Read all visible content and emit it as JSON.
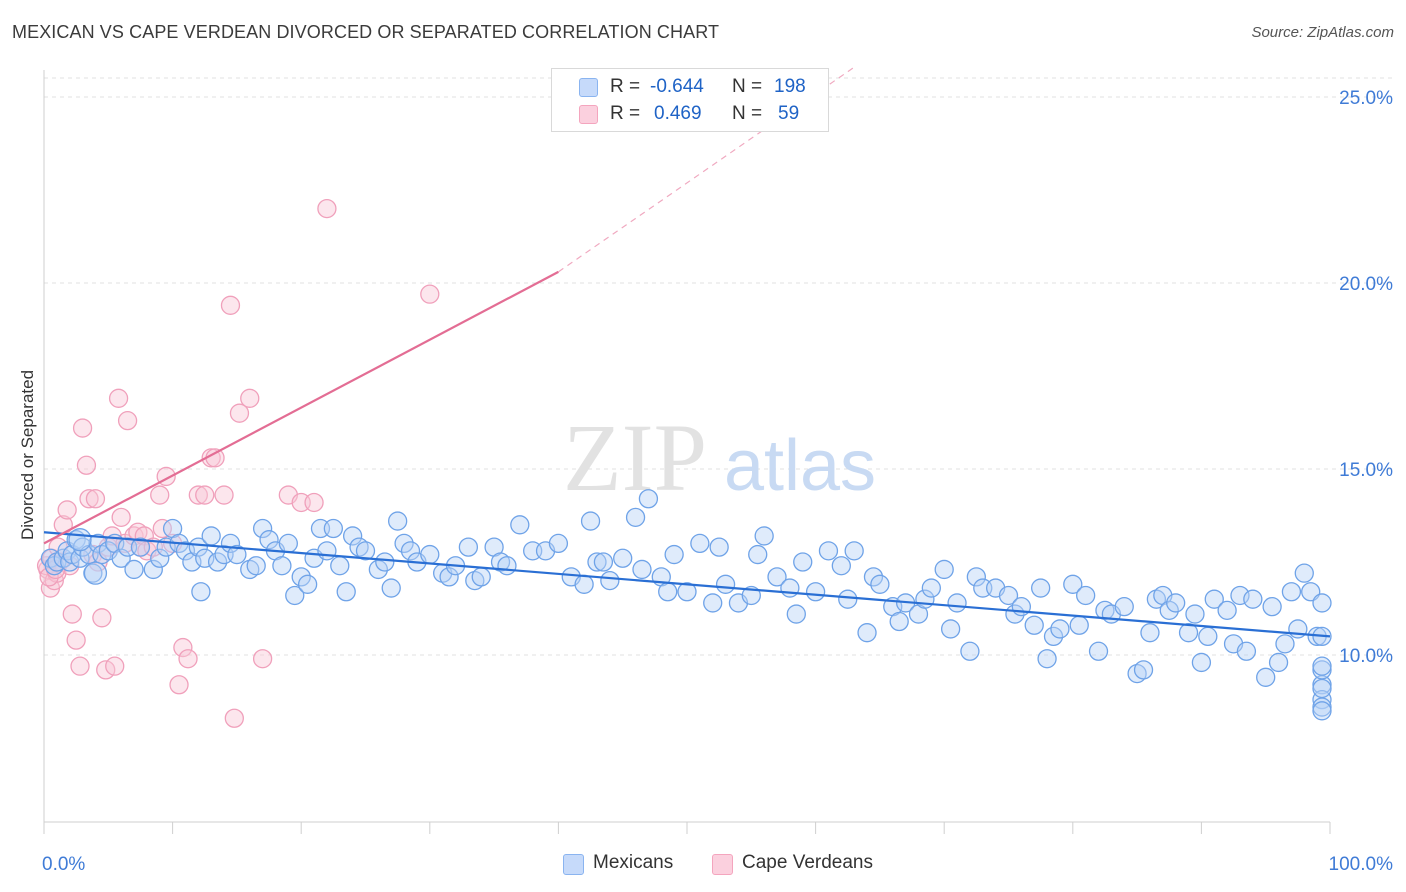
{
  "title": "MEXICAN VS CAPE VERDEAN DIVORCED OR SEPARATED CORRELATION CHART",
  "source": "Source: ZipAtlas.com",
  "watermark": {
    "zip": "ZIP",
    "atlas": "atlas"
  },
  "legend": {
    "series1": {
      "r_label": "R =",
      "r_value": "-0.644",
      "n_label": "N =",
      "n_value": "198",
      "color": "#8ab4f0"
    },
    "series2": {
      "r_label": "R =",
      "r_value": "0.469",
      "n_label": "N =",
      "n_value": "59",
      "color": "#f4a5be"
    }
  },
  "bottom_legend": {
    "mexicans": "Mexicans",
    "cape_verdeans": "Cape Verdeans"
  },
  "chart_data": {
    "type": "scatter",
    "title": "MEXICAN VS CAPE VERDEAN DIVORCED OR SEPARATED CORRELATION CHART",
    "xlabel": "",
    "ylabel": "Divorced or Separated",
    "xlim": [
      0,
      100
    ],
    "ylim": [
      5,
      26
    ],
    "x_ticks": [
      0,
      10,
      20,
      30,
      40,
      50,
      60,
      70,
      80,
      90,
      100
    ],
    "x_tick_labels": {
      "left": "0.0%",
      "right": "100.0%"
    },
    "y_ticks": [
      10,
      15,
      20,
      25
    ],
    "y_tick_labels": [
      "10.0%",
      "15.0%",
      "20.0%",
      "25.0%"
    ],
    "grid": "horizontal dashed",
    "series": [
      {
        "name": "Mexicans",
        "color": "#6fa3e8",
        "trend": {
          "x": [
            0,
            100
          ],
          "y": [
            13.3,
            10.5
          ],
          "color": "#2a6fd4"
        },
        "points": [
          [
            0.5,
            12.6
          ],
          [
            0.8,
            12.4
          ],
          [
            1,
            12.5
          ],
          [
            1.5,
            12.6
          ],
          [
            1.8,
            12.8
          ],
          [
            2,
            12.5
          ],
          [
            2.2,
            12.7
          ],
          [
            2.5,
            13.1
          ],
          [
            2.8,
            12.6
          ],
          [
            3,
            12.9
          ],
          [
            3.5,
            12.7
          ],
          [
            3.8,
            12.2
          ],
          [
            4.2,
            13
          ],
          [
            4.5,
            12.7
          ],
          [
            5,
            12.8
          ],
          [
            5.5,
            13
          ],
          [
            6,
            12.6
          ],
          [
            6.5,
            12.9
          ],
          [
            7,
            12.3
          ],
          [
            7.5,
            12.9
          ],
          [
            8.5,
            12.3
          ],
          [
            9,
            12.6
          ],
          [
            9.5,
            12.9
          ],
          [
            10,
            13.4
          ],
          [
            10.5,
            13
          ],
          [
            11,
            12.8
          ],
          [
            11.5,
            12.5
          ],
          [
            12,
            12.9
          ],
          [
            12.2,
            11.7
          ],
          [
            12.5,
            12.6
          ],
          [
            13,
            13.2
          ],
          [
            13.5,
            12.5
          ],
          [
            14,
            12.7
          ],
          [
            14.5,
            13
          ],
          [
            15,
            12.7
          ],
          [
            16,
            12.3
          ],
          [
            16.5,
            12.4
          ],
          [
            17,
            13.4
          ],
          [
            17.5,
            13.1
          ],
          [
            18,
            12.8
          ],
          [
            18.5,
            12.4
          ],
          [
            19,
            13
          ],
          [
            19.5,
            11.6
          ],
          [
            20,
            12.1
          ],
          [
            20.5,
            11.9
          ],
          [
            21,
            12.6
          ],
          [
            21.5,
            13.4
          ],
          [
            22,
            12.8
          ],
          [
            22.5,
            13.4
          ],
          [
            23,
            12.4
          ],
          [
            23.5,
            11.7
          ],
          [
            24,
            13.2
          ],
          [
            24.5,
            12.9
          ],
          [
            25,
            12.8
          ],
          [
            26,
            12.3
          ],
          [
            26.5,
            12.5
          ],
          [
            27,
            11.8
          ],
          [
            27.5,
            13.6
          ],
          [
            28,
            13
          ],
          [
            28.5,
            12.8
          ],
          [
            29,
            12.5
          ],
          [
            30,
            12.7
          ],
          [
            31,
            12.2
          ],
          [
            31.5,
            12.1
          ],
          [
            32,
            12.4
          ],
          [
            33,
            12.9
          ],
          [
            33.5,
            12
          ],
          [
            34,
            12.1
          ],
          [
            35,
            12.9
          ],
          [
            35.5,
            12.5
          ],
          [
            36,
            12.4
          ],
          [
            37,
            13.5
          ],
          [
            38,
            12.8
          ],
          [
            39,
            12.8
          ],
          [
            40,
            13
          ],
          [
            41,
            12.1
          ],
          [
            42,
            11.9
          ],
          [
            42.5,
            13.6
          ],
          [
            43,
            12.5
          ],
          [
            43.5,
            12.5
          ],
          [
            44,
            12
          ],
          [
            45,
            12.6
          ],
          [
            46,
            13.7
          ],
          [
            46.5,
            12.3
          ],
          [
            47,
            14.2
          ],
          [
            48,
            12.1
          ],
          [
            48.5,
            11.7
          ],
          [
            49,
            12.7
          ],
          [
            50,
            11.7
          ],
          [
            51,
            13
          ],
          [
            52,
            11.4
          ],
          [
            52.5,
            12.9
          ],
          [
            53,
            11.9
          ],
          [
            54,
            11.4
          ],
          [
            55,
            11.6
          ],
          [
            55.5,
            12.7
          ],
          [
            56,
            13.2
          ],
          [
            57,
            12.1
          ],
          [
            58,
            11.8
          ],
          [
            58.5,
            11.1
          ],
          [
            59,
            12.5
          ],
          [
            60,
            11.7
          ],
          [
            61,
            12.8
          ],
          [
            62,
            12.4
          ],
          [
            62.5,
            11.5
          ],
          [
            63,
            12.8
          ],
          [
            64,
            10.6
          ],
          [
            64.5,
            12.1
          ],
          [
            65,
            11.9
          ],
          [
            66,
            11.3
          ],
          [
            66.5,
            10.9
          ],
          [
            67,
            11.4
          ],
          [
            68,
            11.1
          ],
          [
            68.5,
            11.5
          ],
          [
            69,
            11.8
          ],
          [
            70,
            12.3
          ],
          [
            70.5,
            10.7
          ],
          [
            71,
            11.4
          ],
          [
            72,
            10.1
          ],
          [
            72.5,
            12.1
          ],
          [
            73,
            11.8
          ],
          [
            74,
            11.8
          ],
          [
            75,
            11.6
          ],
          [
            75.5,
            11.1
          ],
          [
            76,
            11.3
          ],
          [
            77,
            10.8
          ],
          [
            77.5,
            11.8
          ],
          [
            78,
            9.9
          ],
          [
            78.5,
            10.5
          ],
          [
            79,
            10.7
          ],
          [
            80,
            11.9
          ],
          [
            80.5,
            10.8
          ],
          [
            81,
            11.6
          ],
          [
            82,
            10.1
          ],
          [
            82.5,
            11.2
          ],
          [
            83,
            11.1
          ],
          [
            84,
            11.3
          ],
          [
            85,
            9.5
          ],
          [
            85.5,
            9.6
          ],
          [
            86,
            10.6
          ],
          [
            86.5,
            11.5
          ],
          [
            87,
            11.6
          ],
          [
            87.5,
            11.2
          ],
          [
            88,
            11.4
          ],
          [
            89,
            10.6
          ],
          [
            89.5,
            11.1
          ],
          [
            90,
            9.8
          ],
          [
            90.5,
            10.5
          ],
          [
            91,
            11.5
          ],
          [
            92,
            11.2
          ],
          [
            92.5,
            10.3
          ],
          [
            93,
            11.6
          ],
          [
            93.5,
            10.1
          ],
          [
            94,
            11.5
          ],
          [
            95,
            9.4
          ],
          [
            95.5,
            11.3
          ],
          [
            96,
            9.8
          ],
          [
            96.5,
            10.3
          ],
          [
            97,
            11.7
          ],
          [
            97.5,
            10.7
          ],
          [
            98,
            12.2
          ],
          [
            98.5,
            11.7
          ],
          [
            99,
            10.5
          ],
          [
            99.5,
            9.2
          ],
          [
            100,
            9.6
          ],
          [
            100.5,
            8.8
          ],
          [
            101,
            10.5
          ],
          [
            101.5,
            9.1
          ],
          [
            102,
            8.6
          ],
          [
            102.5,
            8.5
          ],
          [
            103,
            11.4
          ],
          [
            103.5,
            9.7
          ]
        ]
      },
      {
        "name": "Cape Verdeans",
        "color": "#f4a5be",
        "trend": {
          "x": [
            0,
            40
          ],
          "y": [
            13.0,
            20.3
          ],
          "dashed_to": {
            "x": 63,
            "y": 25.8
          },
          "color": "#e36d94"
        },
        "points": [
          [
            0.3,
            12.3
          ],
          [
            0.5,
            11.8
          ],
          [
            0.8,
            12
          ],
          [
            1,
            12.2
          ],
          [
            1.2,
            12.5
          ],
          [
            1.5,
            13.5
          ],
          [
            1.8,
            13.9
          ],
          [
            2,
            12.4
          ],
          [
            2.2,
            11.1
          ],
          [
            2.5,
            10.4
          ],
          [
            2.8,
            9.7
          ],
          [
            3,
            16.1
          ],
          [
            3.3,
            15.1
          ],
          [
            3.5,
            14.2
          ],
          [
            3.8,
            12.7
          ],
          [
            4,
            14.2
          ],
          [
            4.2,
            12.5
          ],
          [
            4.5,
            11
          ],
          [
            4.8,
            9.6
          ],
          [
            5,
            12.9
          ],
          [
            5.3,
            13.2
          ],
          [
            5.5,
            9.7
          ],
          [
            5.8,
            16.9
          ],
          [
            6,
            13.7
          ],
          [
            6.3,
            13
          ],
          [
            6.5,
            16.3
          ],
          [
            7,
            13.2
          ],
          [
            7.3,
            13.3
          ],
          [
            7.5,
            12.9
          ],
          [
            7.8,
            13.2
          ],
          [
            8,
            12.8
          ],
          [
            8.5,
            12.9
          ],
          [
            9,
            14.3
          ],
          [
            9.2,
            13.4
          ],
          [
            9.5,
            14.8
          ],
          [
            10,
            13
          ],
          [
            10.5,
            9.2
          ],
          [
            10.8,
            10.2
          ],
          [
            11.2,
            9.9
          ],
          [
            12,
            14.3
          ],
          [
            12.5,
            14.3
          ],
          [
            13,
            15.3
          ],
          [
            13.3,
            15.3
          ],
          [
            14,
            14.3
          ],
          [
            14.5,
            19.4
          ],
          [
            14.8,
            8.3
          ],
          [
            15.2,
            16.5
          ],
          [
            16,
            16.9
          ],
          [
            17,
            9.9
          ],
          [
            19,
            14.3
          ],
          [
            20,
            14.1
          ],
          [
            21,
            14.1
          ],
          [
            22,
            22
          ],
          [
            30,
            19.7
          ],
          [
            0.2,
            12.4
          ],
          [
            0.4,
            12.1
          ],
          [
            0.6,
            12.6
          ],
          [
            0.9,
            12.3
          ],
          [
            1.1,
            12.9
          ]
        ]
      }
    ]
  }
}
